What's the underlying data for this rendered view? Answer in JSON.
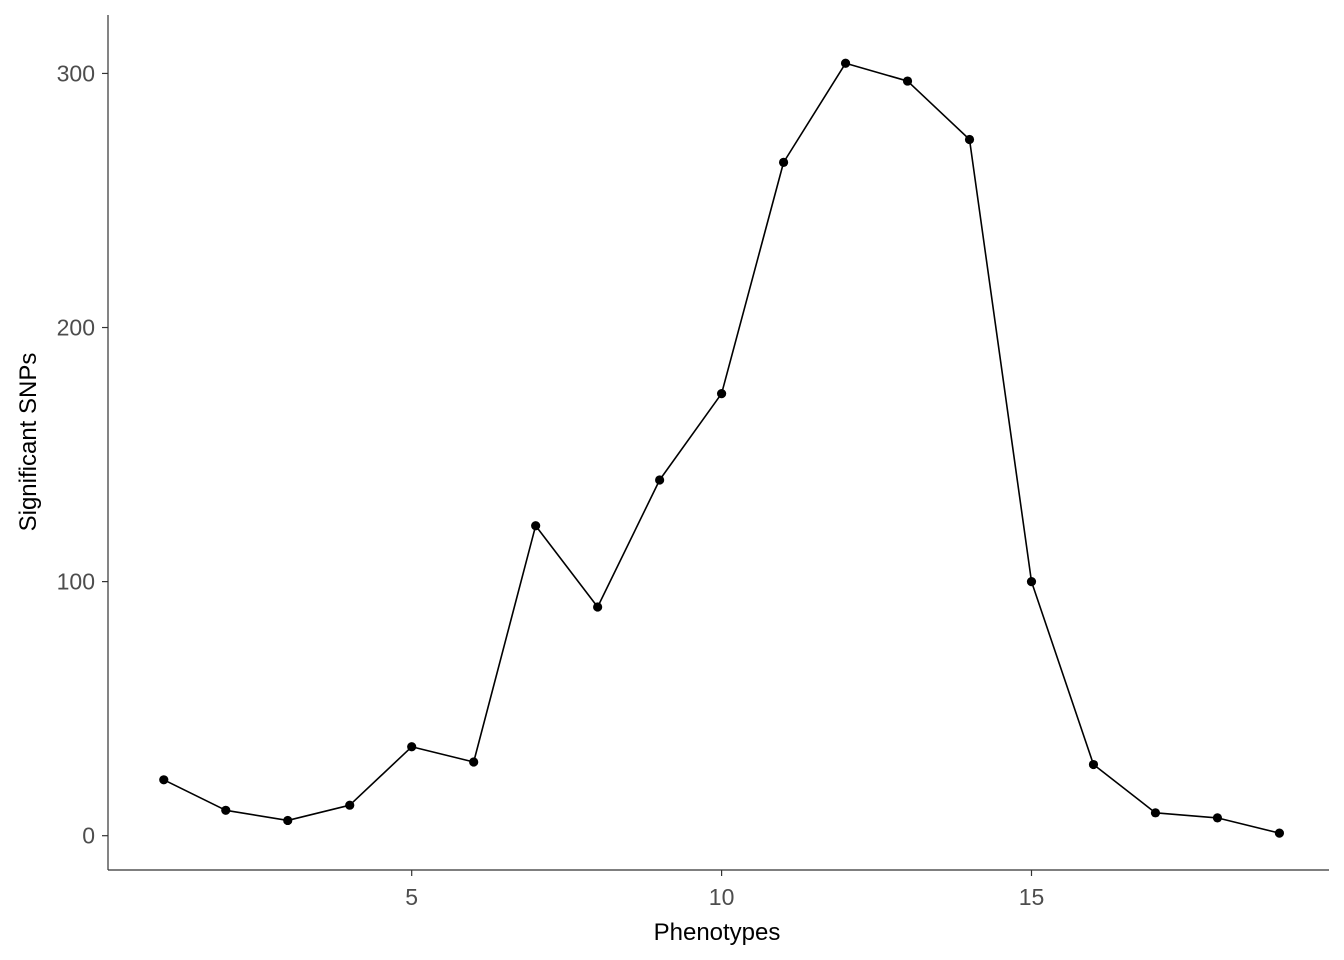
{
  "chart_data": {
    "type": "line",
    "title": "",
    "xlabel": "Phenotypes",
    "ylabel": "Significant SNPs",
    "x": [
      1,
      2,
      3,
      4,
      5,
      6,
      7,
      8,
      9,
      10,
      11,
      12,
      13,
      14,
      15,
      16,
      17,
      18,
      19
    ],
    "series": [
      {
        "values": [
          22,
          10,
          6,
          12,
          35,
          29,
          122,
          90,
          140,
          174,
          265,
          304,
          297,
          274,
          100,
          28,
          9,
          7,
          1
        ]
      }
    ],
    "xticks": [
      5,
      10,
      15
    ],
    "xtick_labels": [
      "5",
      "10",
      "15"
    ],
    "yticks": [
      0,
      100,
      200,
      300
    ],
    "ytick_labels": [
      "0",
      "100",
      "200",
      "300"
    ],
    "xlim": [
      0.1,
      19.8
    ],
    "ylim": [
      -13.5,
      323
    ],
    "grid": false,
    "legend": "none",
    "line_color": "#000000",
    "point_color": "#000000"
  }
}
